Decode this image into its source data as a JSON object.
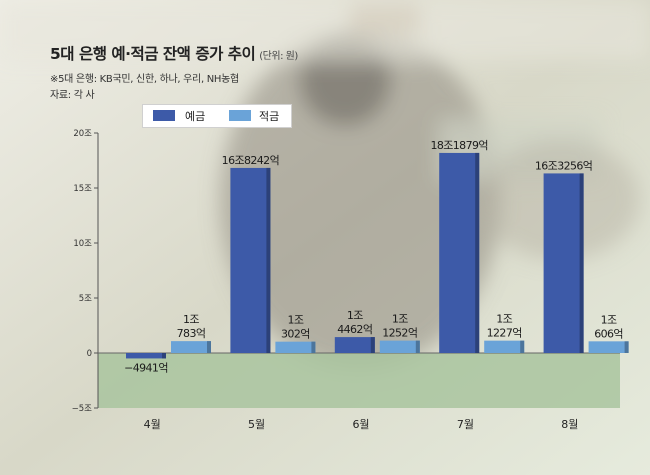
{
  "title": "5대 은행 예·적금 잔액 증가 추이",
  "unit": "(단위: 원)",
  "notes": [
    "※5대 은행: KB국민, 신한, 하나, 우리, NH농협",
    "자료: 각 사"
  ],
  "colors": {
    "deposit": "#3d5aa8",
    "savings": "#6aa3d8",
    "below_zero_band": "#a9c49f"
  },
  "chart_data": {
    "type": "bar",
    "categories": [
      "4월",
      "5월",
      "6월",
      "7월",
      "8월"
    ],
    "series": [
      {
        "name": "예금",
        "values": [
          -4941,
          168242,
          14462,
          181879,
          163256
        ],
        "labels": [
          [
            "−4941억"
          ],
          [
            "16조8242억"
          ],
          [
            "1조",
            "4462억"
          ],
          [
            "18조1879억"
          ],
          [
            "16조3256억"
          ]
        ]
      },
      {
        "name": "적금",
        "values": [
          10783,
          10302,
          11252,
          11227,
          10606
        ],
        "labels": [
          [
            "1조",
            "783억"
          ],
          [
            "1조",
            "302억"
          ],
          [
            "1조",
            "1252억"
          ],
          [
            "1조",
            "1227억"
          ],
          [
            "1조",
            "606억"
          ]
        ]
      }
    ],
    "yticks": [
      -50000,
      0,
      50000,
      100000,
      150000,
      200000
    ],
    "ytick_labels": [
      "−5조",
      "0",
      "5조",
      "10조",
      "15조",
      "20조"
    ],
    "ylim": [
      -50000,
      200000
    ],
    "value_unit": "억원",
    "grid": false,
    "legend_position": "top"
  }
}
